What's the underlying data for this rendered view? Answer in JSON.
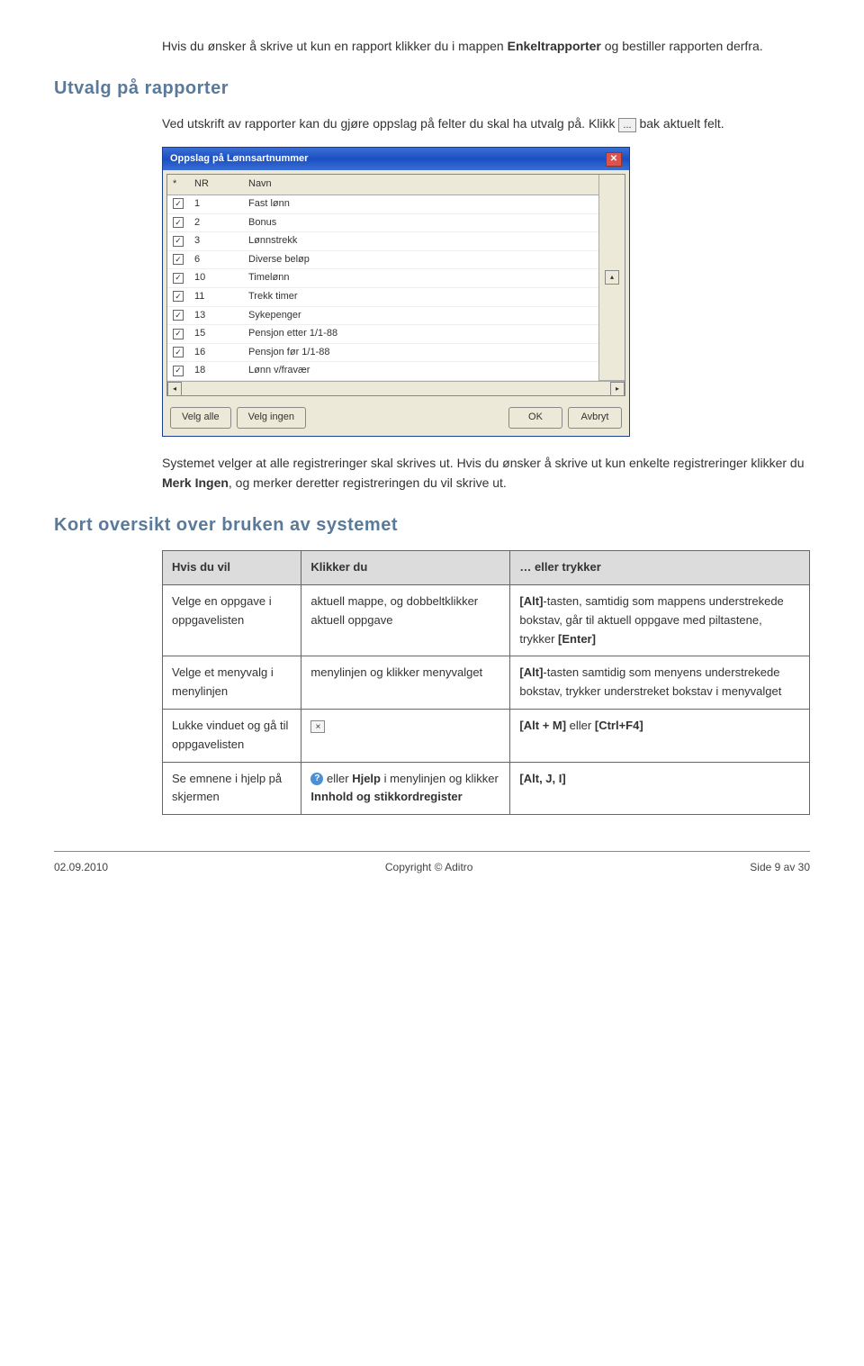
{
  "colors": {
    "heading": "#5a7a9a",
    "body_text": "#333333",
    "table_border": "#666666",
    "table_header_bg": "#dcdcdc",
    "dialog_title_bg_from": "#3b6fd6",
    "dialog_title_bg_to": "#1a4fc0",
    "dialog_bg": "#ece9d8"
  },
  "intro": {
    "p1a": "Hvis du ønsker å skrive ut kun en rapport klikker du i mappen",
    "p1b": "Enkeltrapporter",
    "p1c": " og bestiller rapporten derfra."
  },
  "section1": {
    "heading": "Utvalg på rapporter",
    "p1": "Ved utskrift av rapporter kan du gjøre oppslag på felter du skal ha utvalg på. Klikk ",
    "btn": "...",
    "p1b": " bak aktuelt felt.",
    "p2a": "Systemet velger at alle registreringer skal skrives ut. Hvis du ønsker å skrive ut kun enkelte registreringer klikker du ",
    "p2b": "Merk Ingen",
    "p2c": ", og merker deretter registreringen du vil skrive ut."
  },
  "dialog": {
    "title": "Oppslag på Lønnsartnummer",
    "col_star": "*",
    "col_nr": "NR",
    "col_navn": "Navn",
    "rows": [
      {
        "nr": "1",
        "navn": "Fast lønn"
      },
      {
        "nr": "2",
        "navn": "Bonus"
      },
      {
        "nr": "3",
        "navn": "Lønnstrekk"
      },
      {
        "nr": "6",
        "navn": "Diverse beløp"
      },
      {
        "nr": "10",
        "navn": "Timelønn"
      },
      {
        "nr": "11",
        "navn": "Trekk timer"
      },
      {
        "nr": "13",
        "navn": "Sykepenger"
      },
      {
        "nr": "15",
        "navn": "Pensjon etter 1/1-88"
      },
      {
        "nr": "16",
        "navn": "Pensjon før 1/1-88"
      },
      {
        "nr": "18",
        "navn": "Lønn v/fravær"
      }
    ],
    "btn_velg_alle": "Velg alle",
    "btn_velg_ingen": "Velg ingen",
    "btn_ok": "OK",
    "btn_avbryt": "Avbryt"
  },
  "section2": {
    "heading": "Kort oversikt over bruken av systemet",
    "th1": "Hvis du vil",
    "th2": "Klikker du",
    "th3": "… eller trykker",
    "r1c1": "Velge en oppgave i oppgavelisten",
    "r1c2": "aktuell mappe, og dobbeltklikker aktuell oppgave",
    "r1c3a": "[Alt]",
    "r1c3b": "-tasten, samtidig som mappens understrekede bokstav, går til aktuell oppgave med piltastene, trykker ",
    "r1c3c": "[Enter]",
    "r2c1": "Velge et menyvalg i menylinjen",
    "r2c2": "menylinjen og klikker menyvalget",
    "r2c3a": "[Alt]",
    "r2c3b": "-tasten samtidig som menyens understrekede bokstav, trykker understreket bokstav i menyvalget",
    "r3c1": "Lukke vinduet og gå til oppgavelisten",
    "r3c2_icon": "×",
    "r3c3a": "[Alt + M]",
    "r3c3b": " eller ",
    "r3c3c": "[Ctrl+F4]",
    "r4c1": "Se emnene i hjelp på skjermen",
    "r4c2a": " eller ",
    "r4c2b": "Hjelp",
    "r4c2c": " i menylinjen og klikker ",
    "r4c2d": "Innhold og stikkordregister",
    "r4c3": "[Alt, J, I]"
  },
  "footer": {
    "date": "02.09.2010",
    "copyright": "Copyright © Aditro",
    "page": "Side 9 av 30"
  }
}
